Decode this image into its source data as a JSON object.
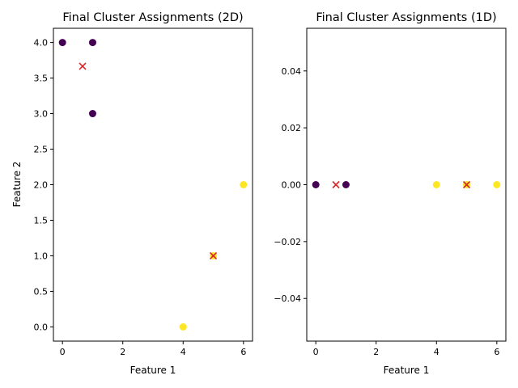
{
  "chart_data": [
    {
      "type": "scatter",
      "title": "Final Cluster Assignments (2D)",
      "xlabel": "Feature 1",
      "ylabel": "Feature 2",
      "xlim": [
        -0.3,
        6.3
      ],
      "ylim": [
        -0.2,
        4.2
      ],
      "xticks": [
        0,
        2,
        4,
        6
      ],
      "xtick_labels": [
        "0",
        "2",
        "4",
        "6"
      ],
      "yticks": [
        0.0,
        0.5,
        1.0,
        1.5,
        2.0,
        2.5,
        3.0,
        3.5,
        4.0
      ],
      "ytick_labels": [
        "0.0",
        "0.5",
        "1.0",
        "1.5",
        "2.0",
        "2.5",
        "3.0",
        "3.5",
        "4.0"
      ],
      "grid": false,
      "points": [
        {
          "x": 0,
          "y": 4,
          "cluster": 0
        },
        {
          "x": 1,
          "y": 4,
          "cluster": 0
        },
        {
          "x": 1,
          "y": 3,
          "cluster": 0
        },
        {
          "x": 5,
          "y": 1,
          "cluster": 1
        },
        {
          "x": 6,
          "y": 2,
          "cluster": 1
        },
        {
          "x": 4,
          "y": 0,
          "cluster": 1
        }
      ],
      "centroids": [
        {
          "x": 0.667,
          "y": 3.667
        },
        {
          "x": 5.0,
          "y": 1.0
        }
      ],
      "cluster_colors": [
        "#440154",
        "#fde725"
      ],
      "centroid_color": "#d62728",
      "centroid_marker": "x"
    },
    {
      "type": "scatter",
      "title": "Final Cluster Assignments (1D)",
      "xlabel": "Feature 1",
      "ylabel": "",
      "xlim": [
        -0.3,
        6.3
      ],
      "ylim": [
        -0.055,
        0.055
      ],
      "xticks": [
        0,
        2,
        4,
        6
      ],
      "xtick_labels": [
        "0",
        "2",
        "4",
        "6"
      ],
      "yticks": [
        -0.04,
        -0.02,
        0.0,
        0.02,
        0.04
      ],
      "ytick_labels": [
        "−0.04",
        "−0.02",
        "0.00",
        "0.02",
        "0.04"
      ],
      "grid": false,
      "points": [
        {
          "x": 0,
          "y": 0,
          "cluster": 0
        },
        {
          "x": 1,
          "y": 0,
          "cluster": 0
        },
        {
          "x": 4,
          "y": 0,
          "cluster": 1
        },
        {
          "x": 5,
          "y": 0,
          "cluster": 1
        },
        {
          "x": 6,
          "y": 0,
          "cluster": 1
        }
      ],
      "centroids": [
        {
          "x": 0.667,
          "y": 0
        },
        {
          "x": 5.0,
          "y": 0
        }
      ],
      "cluster_colors": [
        "#440154",
        "#fde725"
      ],
      "centroid_color": "#d62728",
      "centroid_marker": "x"
    }
  ]
}
